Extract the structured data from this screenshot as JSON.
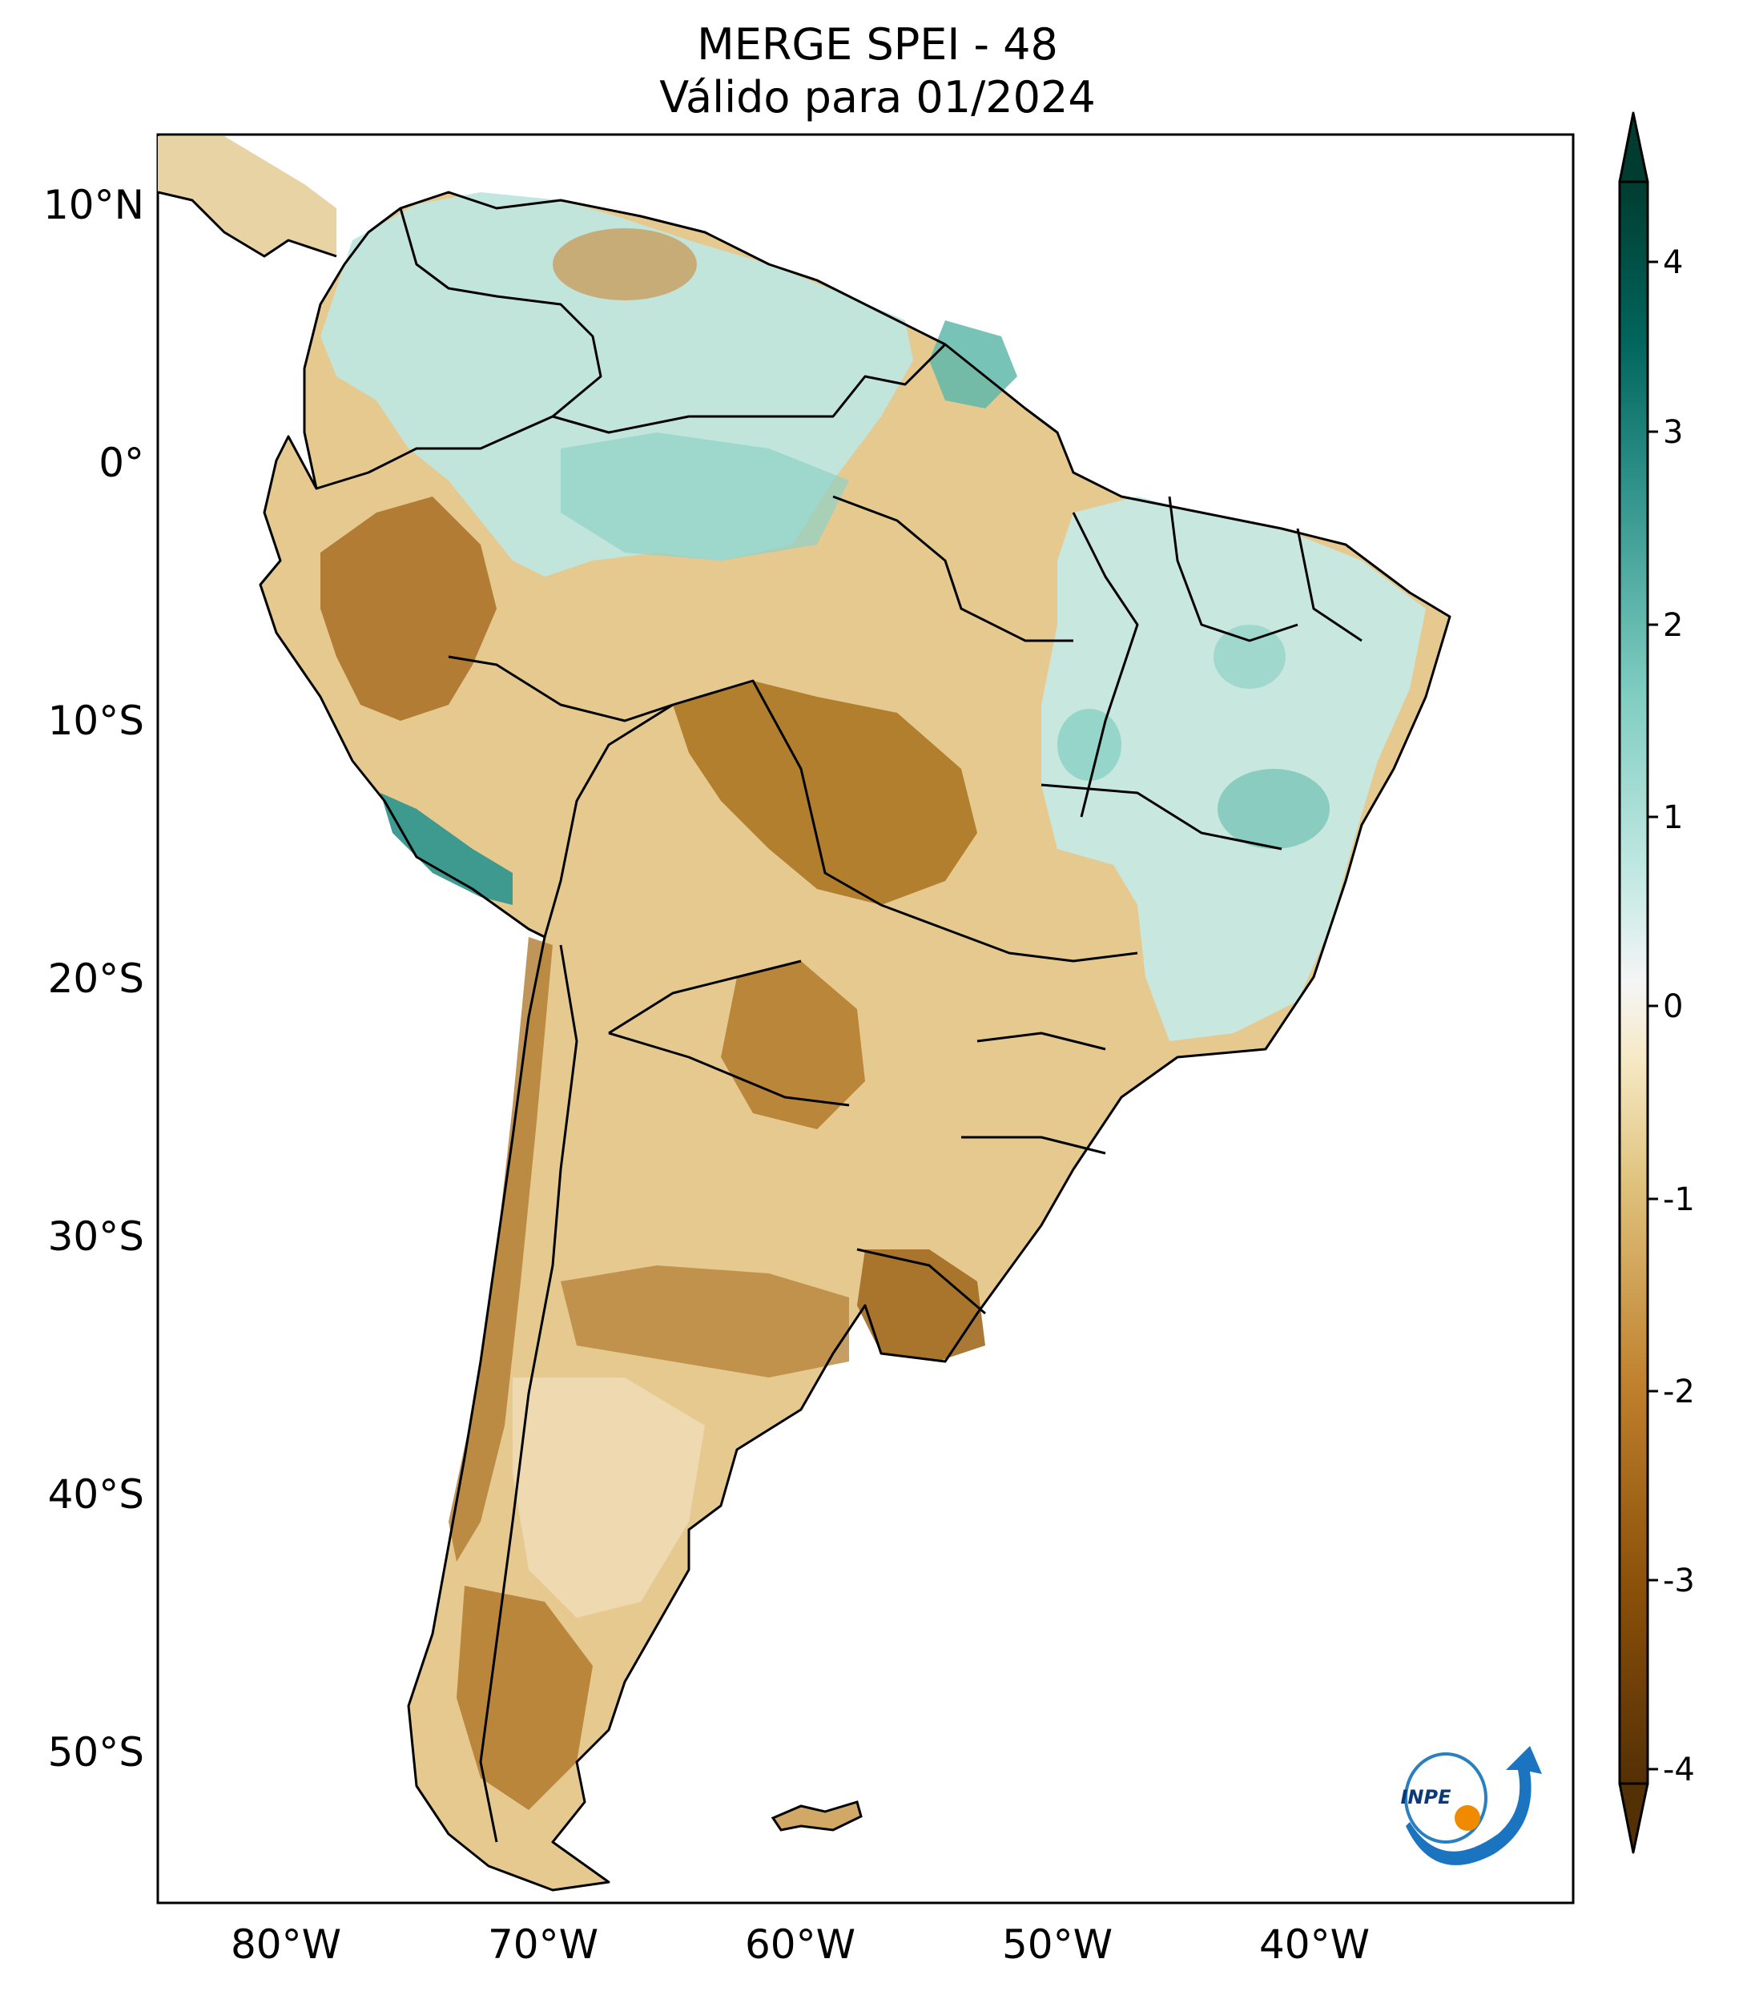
{
  "title": {
    "line1": "MERGE   SPEI - 48",
    "line2": "Válido para 01/2024"
  },
  "axes": {
    "lat_labels": [
      "10°N",
      "0°",
      "10°S",
      "20°S",
      "30°S",
      "40°S",
      "50°S"
    ],
    "lat_values": [
      10,
      0,
      -10,
      -20,
      -30,
      -40,
      -50
    ],
    "lon_labels": [
      "80°W",
      "70°W",
      "60°W",
      "50°W",
      "40°W"
    ],
    "lon_values": [
      -80,
      -70,
      -60,
      -50,
      -40
    ],
    "lon_range": [
      -85,
      -30
    ],
    "lat_range": [
      -56,
      13
    ]
  },
  "colorbar": {
    "ticks": [
      "4",
      "3",
      "2",
      "1",
      "0",
      "-1",
      "-2",
      "-3",
      "-4"
    ],
    "tick_values": [
      4,
      3,
      2,
      1,
      0,
      -1,
      -2,
      -3,
      -4
    ],
    "range": [
      -4,
      4
    ],
    "extend": "both",
    "colormap": "BrBG",
    "colors": {
      "max": "#003c30",
      "high": "#35978f",
      "mid_high": "#c7eae5",
      "zero": "#f5f5f5",
      "mid_low": "#f6e8c3",
      "low": "#bf812d",
      "min": "#543005"
    }
  },
  "logo": {
    "text": "INPE"
  }
}
